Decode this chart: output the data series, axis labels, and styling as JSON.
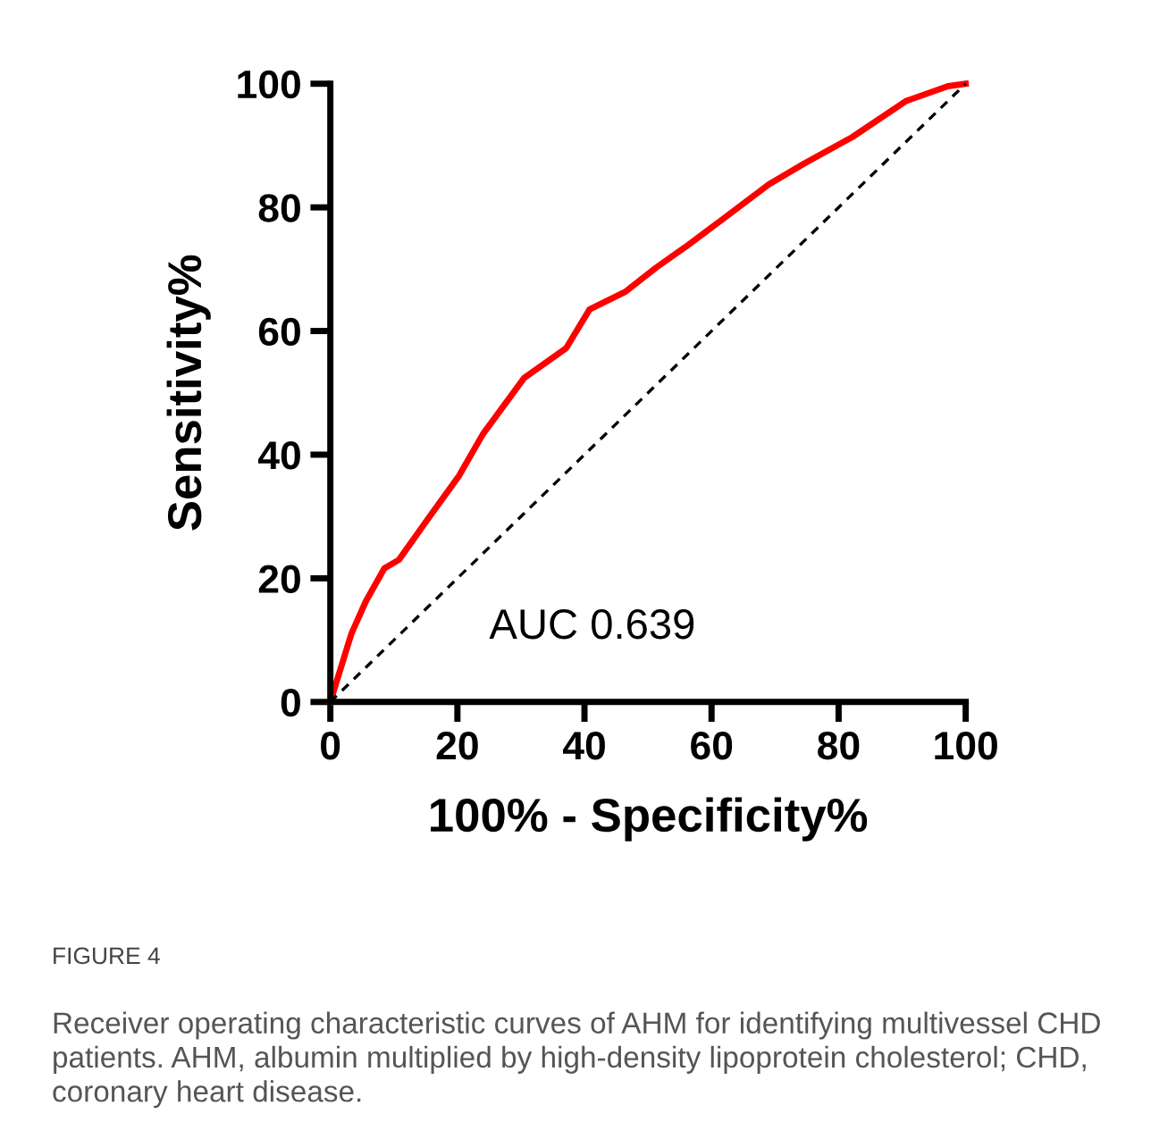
{
  "chart_data": {
    "type": "line",
    "xlabel": "100% - Specificity%",
    "ylabel": "Sensitivity%",
    "xlim": [
      0,
      100
    ],
    "ylim": [
      0,
      100
    ],
    "xticks": [
      0,
      20,
      40,
      60,
      80,
      100
    ],
    "yticks": [
      0,
      20,
      40,
      60,
      80,
      100
    ],
    "grid": false,
    "legend": false,
    "series": [
      {
        "color": "#ff0000",
        "line_style": "solid",
        "x": [
          0,
          3.3,
          5.6,
          8.5,
          10.8,
          15.5,
          20.2,
          24,
          30.5,
          37.1,
          40.8,
          46.5,
          51.2,
          55.9,
          61.5,
          69,
          74.6,
          82.2,
          90.6,
          97.2,
          100
        ],
        "values": [
          0,
          11,
          16.3,
          21.6,
          23,
          29.8,
          36.5,
          43.3,
          52.4,
          57.2,
          63.5,
          66.4,
          70.2,
          73.6,
          77.9,
          83.7,
          87.1,
          91.4,
          97.2,
          99.6,
          100
        ]
      },
      {
        "color": "#000000",
        "line_style": "dashed",
        "x": [
          0,
          100
        ],
        "values": [
          0,
          100
        ]
      }
    ],
    "annotations": [
      "AUC 0.639",
      "FIGURE 4",
      "Receiver operating characteristic curves of AHM for identifying multivessel CHD patients. AHM, albumin multiplied by high-density lipoprotein cholesterol; CHD, coronary heart disease."
    ]
  }
}
